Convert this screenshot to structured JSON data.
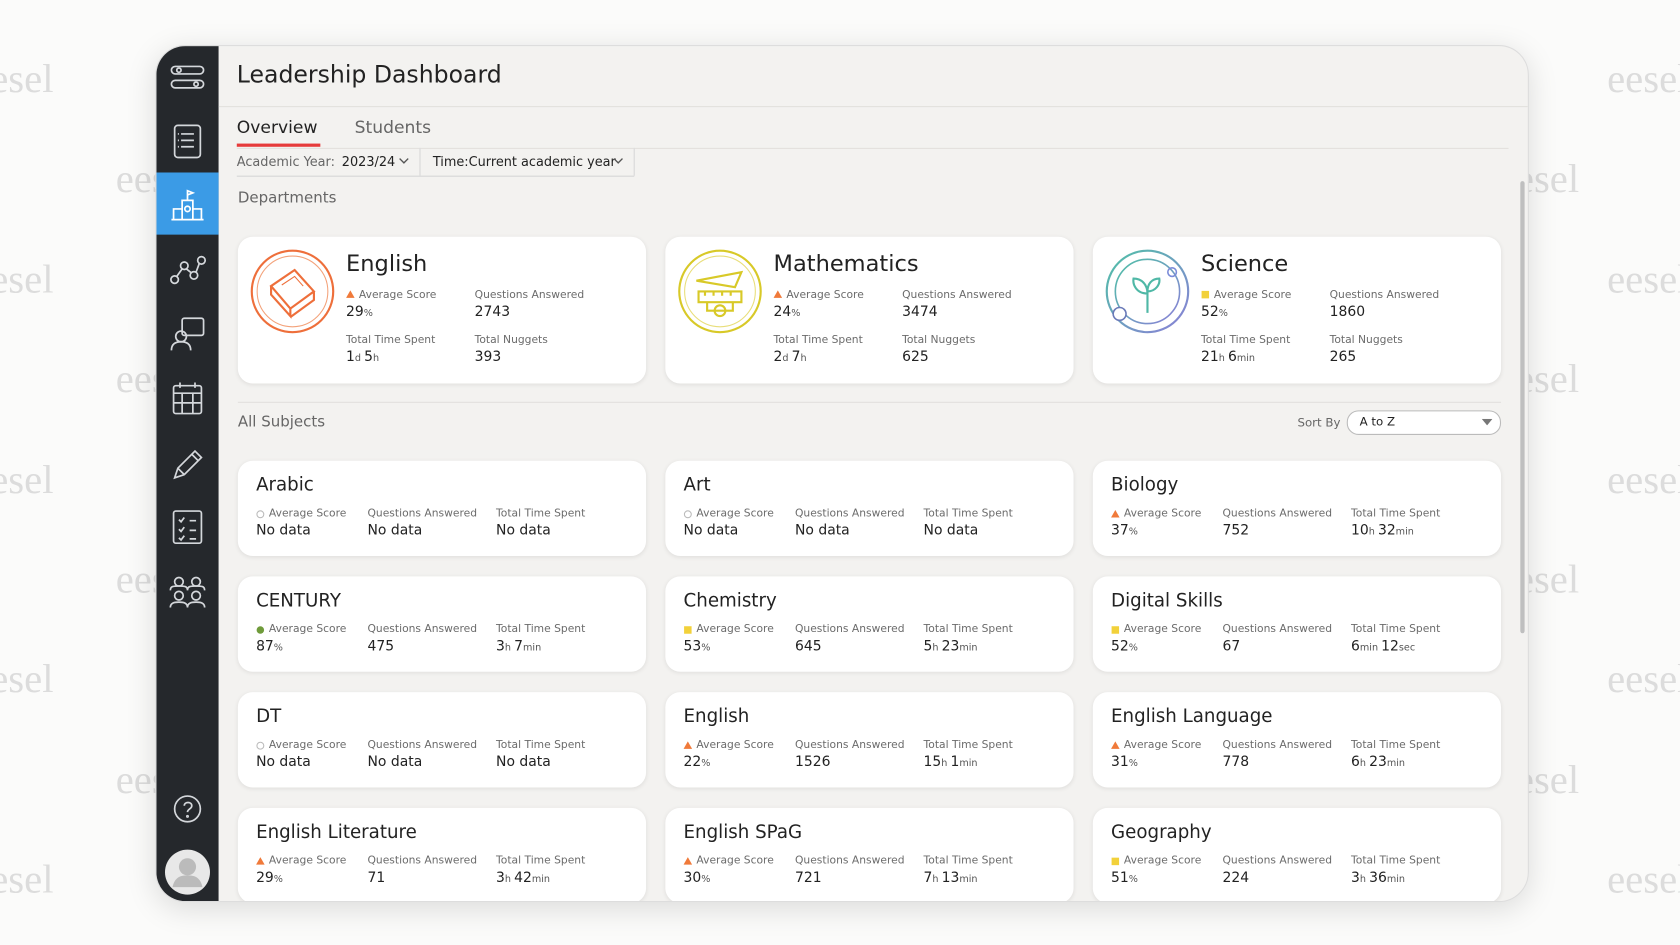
{
  "watermark": "eesel",
  "header": {
    "title": "Leadership Dashboard"
  },
  "tabs": [
    "Overview",
    "Students"
  ],
  "filters": {
    "year_label": "Academic Year:",
    "year": "2023/24",
    "time": "Time:Current academic year"
  },
  "departments": {
    "title": "Departments",
    "labels": [
      "Average Score",
      "Questions Answered",
      "Total Time Spent",
      "Total Nuggets"
    ],
    "items": [
      {
        "name": "English",
        "marker": "triangle",
        "score": "29%",
        "questions": 2743,
        "time": "1d 5h",
        "nuggets": 393
      },
      {
        "name": "Mathematics",
        "marker": "triangle",
        "score": "24%",
        "questions": 3474,
        "time": "2d 7h",
        "nuggets": 625
      },
      {
        "name": "Science",
        "marker": "square",
        "score": "52%",
        "questions": 1860,
        "time": "21h 6min",
        "nuggets": 265
      }
    ]
  },
  "subjects": {
    "title": "All Subjects",
    "sort_label": "Sort By",
    "sort": "A to Z",
    "labels": [
      "Average Score",
      "Questions Answered",
      "Total Time Spent"
    ],
    "items": [
      {
        "name": "Arabic",
        "marker": "circle",
        "score": "No data",
        "questions": "No data",
        "time": "No data"
      },
      {
        "name": "Art",
        "marker": "circle",
        "score": "No data",
        "questions": "No data",
        "time": "No data"
      },
      {
        "name": "Biology",
        "marker": "triangle",
        "score": "37%",
        "questions": 752,
        "time": "10h 32min"
      },
      {
        "name": "CENTURY",
        "marker": "dot",
        "score": "87%",
        "questions": 475,
        "time": "3h 7min"
      },
      {
        "name": "Chemistry",
        "marker": "square",
        "score": "53%",
        "questions": 645,
        "time": "5h 23min"
      },
      {
        "name": "Digital Skills",
        "marker": "square",
        "score": "52%",
        "questions": 67,
        "time": "6min 12sec"
      },
      {
        "name": "DT",
        "marker": "circle",
        "score": "No data",
        "questions": "No data",
        "time": "No data"
      },
      {
        "name": "English",
        "marker": "triangle",
        "score": "22%",
        "questions": 1526,
        "time": "15h 1min"
      },
      {
        "name": "English Language",
        "marker": "triangle",
        "score": "31%",
        "questions": 778,
        "time": "6h 23min"
      },
      {
        "name": "English Literature",
        "marker": "triangle",
        "score": "29%",
        "questions": 71,
        "time": "3h 42min"
      },
      {
        "name": "English SPaG",
        "marker": "triangle",
        "score": "30%",
        "questions": 721,
        "time": "7h 13min"
      },
      {
        "name": "Geography",
        "marker": "square",
        "score": "51%",
        "questions": 224,
        "time": "3h 36min"
      }
    ]
  }
}
